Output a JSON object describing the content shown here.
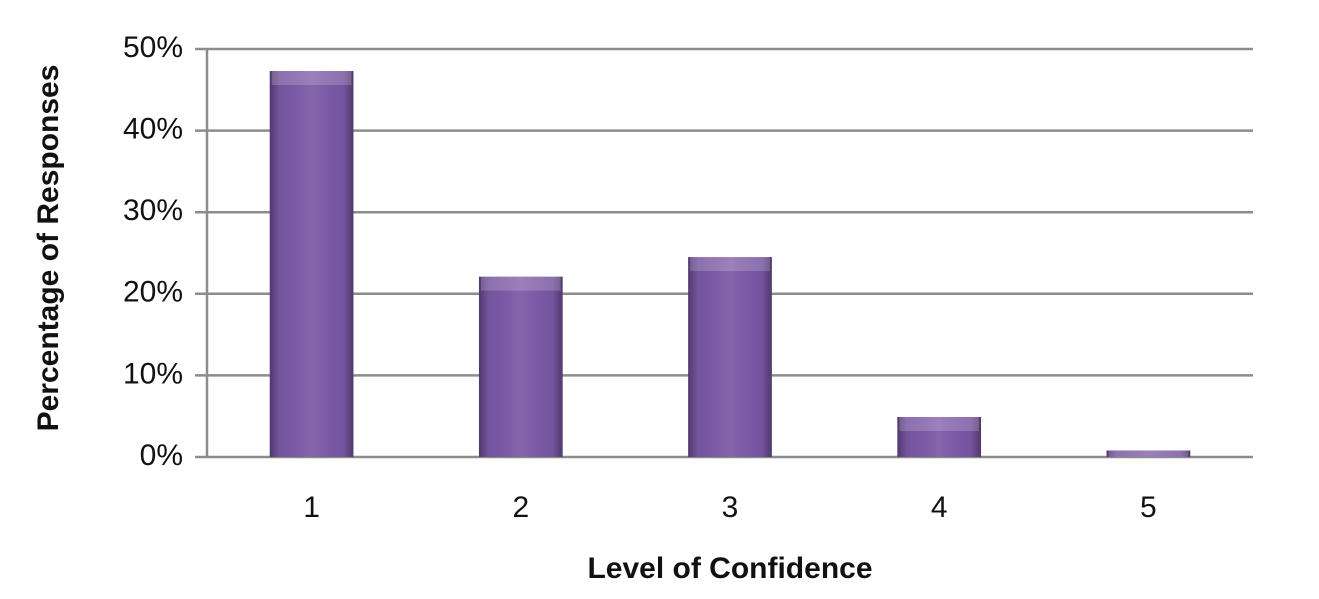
{
  "chart_data": {
    "type": "bar",
    "x_label": "Level of Confidence",
    "y_label": "Percentage of Responses",
    "categories": [
      "1",
      "2",
      "3",
      "4",
      "5"
    ],
    "values": [
      47.3,
      22.1,
      24.5,
      4.9,
      0.8
    ],
    "color": "#7b58a6",
    "ylim": [
      0,
      50
    ],
    "yticks": [
      {
        "value": 0,
        "label": "0%"
      },
      {
        "value": 10,
        "label": "10%"
      },
      {
        "value": 20,
        "label": "20%"
      },
      {
        "value": 30,
        "label": "30%"
      },
      {
        "value": 40,
        "label": "40%"
      },
      {
        "value": 50,
        "label": "50%"
      }
    ],
    "grid": true
  }
}
